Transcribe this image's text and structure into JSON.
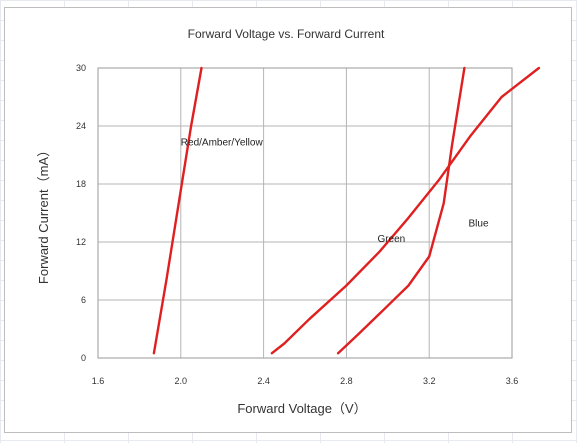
{
  "chart_data": {
    "type": "line",
    "title": "Forward Voltage vs. Forward Current",
    "xlabel": "Forward Voltage（V）",
    "ylabel": "Forward Current（mA）",
    "xlim": [
      1.6,
      3.6
    ],
    "ylim": [
      0,
      30
    ],
    "xticks": [
      "1.6",
      "2.0",
      "2.4",
      "2.8",
      "3.2",
      "3.6"
    ],
    "yticks": [
      "0",
      "6",
      "12",
      "18",
      "24",
      "30"
    ],
    "grid": true,
    "series": [
      {
        "name": "Red/Amber/Yellow",
        "color": "#e02020",
        "points": [
          [
            1.87,
            0.5
          ],
          [
            1.93,
            8
          ],
          [
            1.99,
            16
          ],
          [
            2.05,
            24
          ],
          [
            2.1,
            30
          ]
        ]
      },
      {
        "name": "Green",
        "color": "#e02020",
        "points": [
          [
            2.44,
            0.5
          ],
          [
            2.5,
            1.5
          ],
          [
            2.62,
            4
          ],
          [
            2.8,
            7.5
          ],
          [
            2.96,
            11
          ],
          [
            3.1,
            14.5
          ],
          [
            3.25,
            18.5
          ],
          [
            3.4,
            23
          ],
          [
            3.55,
            27
          ],
          [
            3.73,
            30
          ]
        ]
      },
      {
        "name": "Blue",
        "color": "#e02020",
        "points": [
          [
            2.76,
            0.5
          ],
          [
            2.86,
            2.5
          ],
          [
            2.98,
            5
          ],
          [
            3.1,
            7.5
          ],
          [
            3.2,
            10.5
          ],
          [
            3.27,
            16
          ],
          [
            3.31,
            22
          ],
          [
            3.34,
            26
          ],
          [
            3.37,
            30
          ]
        ]
      }
    ],
    "annotations": [
      {
        "text": "Red/Amber/Yellow",
        "x": 2.0,
        "y": 22
      },
      {
        "text": "Green",
        "x": 2.95,
        "y": 12
      },
      {
        "text": "Blue",
        "x": 3.39,
        "y": 13.6
      }
    ]
  }
}
